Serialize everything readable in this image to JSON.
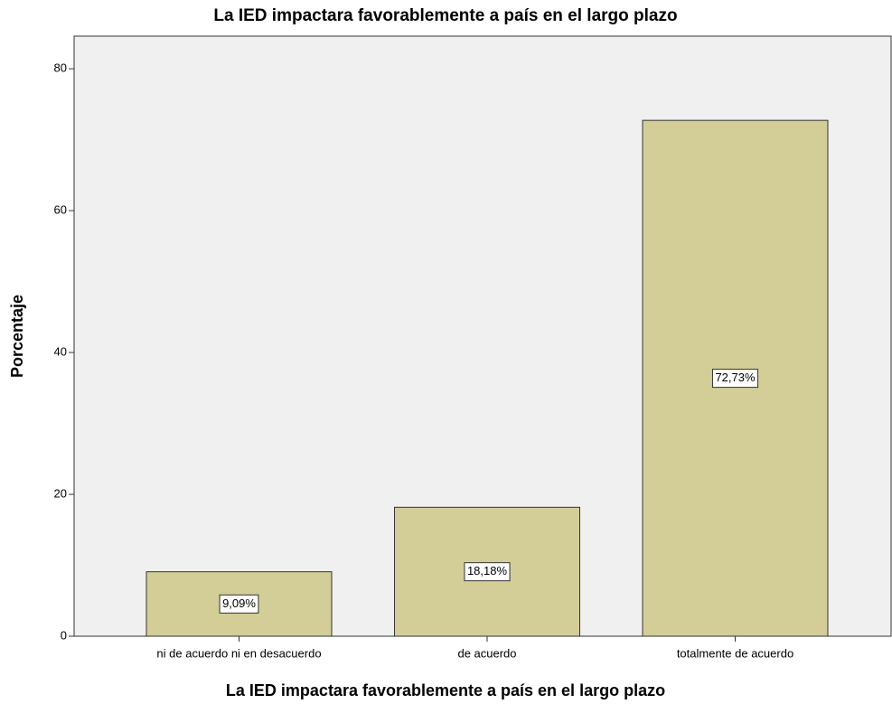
{
  "chart_data": {
    "type": "bar",
    "title": "La IED  impactara favorablemente a país en el largo plazo",
    "x_label": "La IED  impactara favorablemente a país en el largo plazo",
    "y_label": "Porcentaje",
    "categories": [
      "ni de acuerdo ni en desacuerdo",
      "de acuerdo",
      "totalmente de acuerdo"
    ],
    "values": [
      9.09,
      18.18,
      72.73
    ],
    "value_labels": [
      "9,09%",
      "18,18%",
      "72,73%"
    ],
    "color": "#d3ce97",
    "ylim": [
      0,
      84.6
    ],
    "yticks": [
      0,
      20,
      40,
      60,
      80
    ],
    "grid": false
  }
}
